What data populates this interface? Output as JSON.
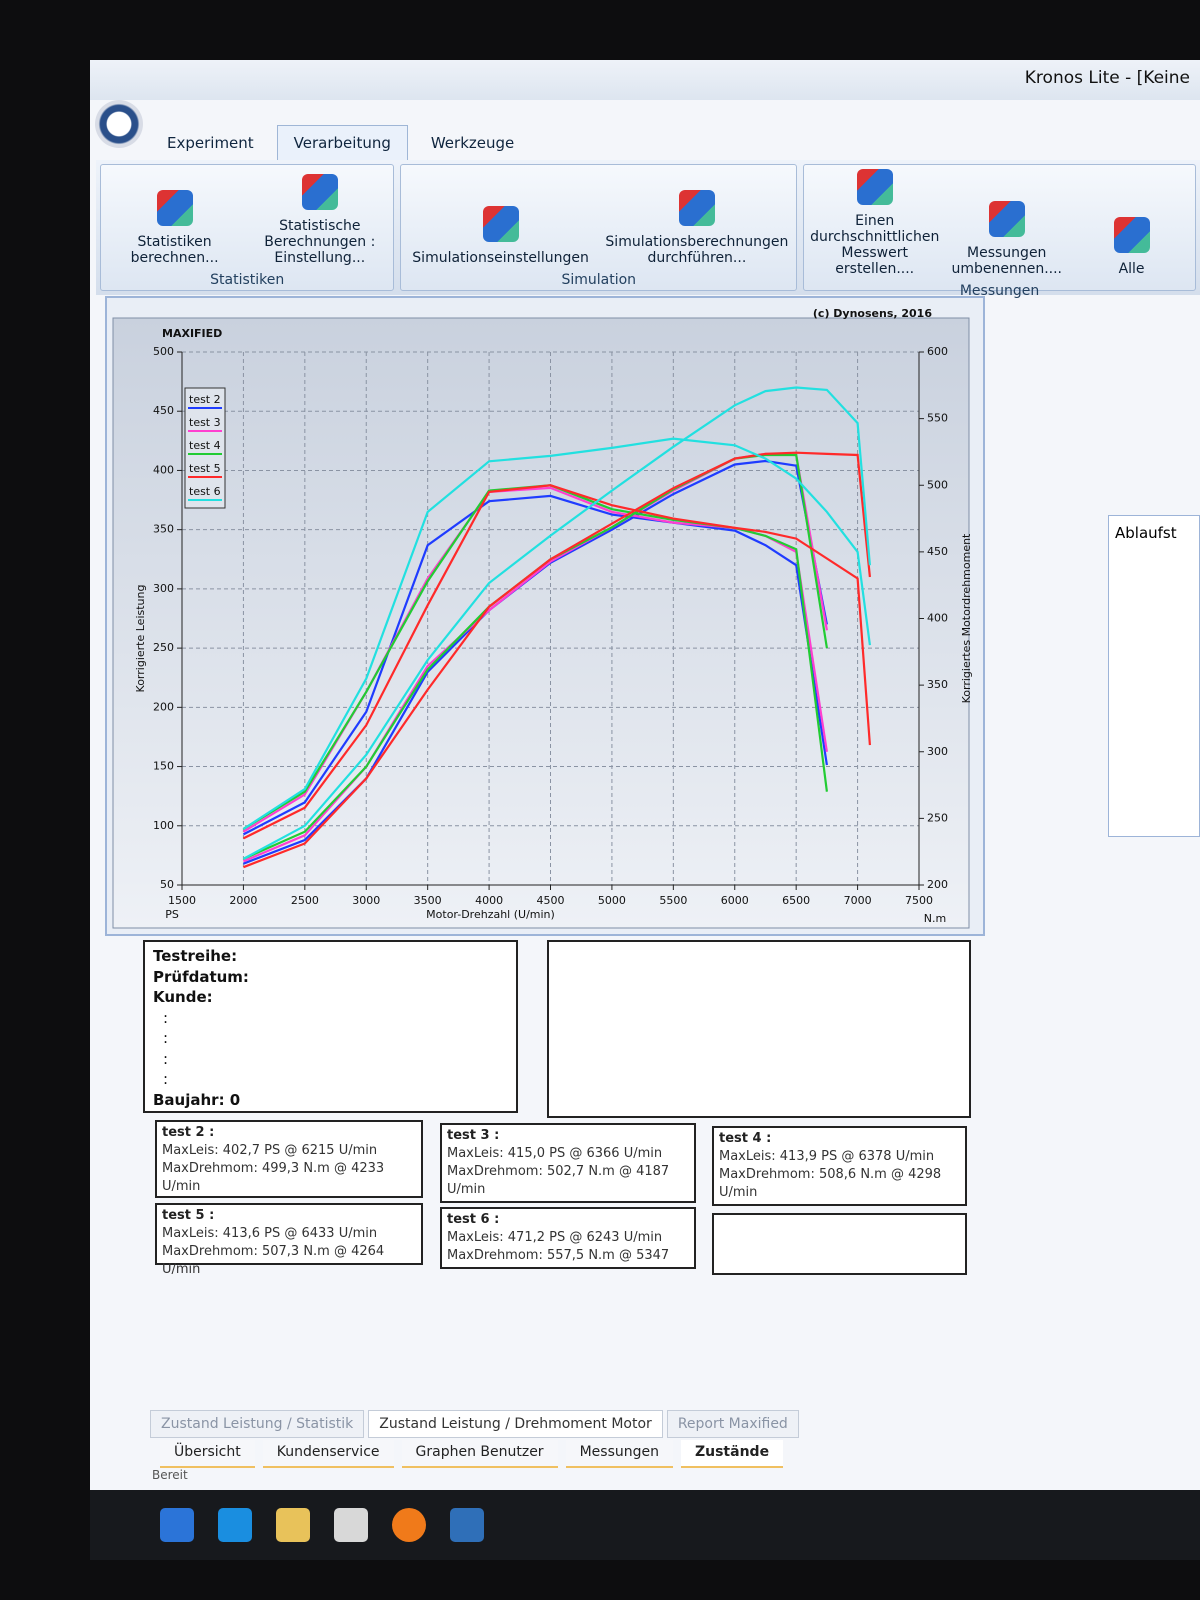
{
  "window": {
    "title": "Kronos Lite - [Keine"
  },
  "ribbon": {
    "tabs": [
      "Experiment",
      "Verarbeitung",
      "Werkzeuge"
    ],
    "groups": [
      {
        "label": "Statistiken",
        "buttons": [
          "Statistiken berechnen...",
          "Statistische Berechnungen : Einstellung..."
        ]
      },
      {
        "label": "Simulation",
        "buttons": [
          "Simulationseinstellungen",
          "Simulationsberechnungen durchführen..."
        ]
      },
      {
        "label": "Messungen",
        "buttons": [
          "Einen durchschnittlichen Messwert erstellen....",
          "Messungen umbenennen....",
          "Alle"
        ]
      }
    ]
  },
  "side_panel": {
    "title": "Ablaufst"
  },
  "chart_data": {
    "type": "line",
    "title": "MAXIFIED",
    "subtitle": "(c) Dynosens, 2016",
    "x_label": "Motor-Drehzahl (U/min)",
    "y_label": "Korrigierte Leistung",
    "y2_label": "Korrigiertes Motordrehmoment",
    "y_unit": "PS",
    "y2_unit": "N.m",
    "x": [
      2000,
      2500,
      3000,
      3500,
      4000,
      4500,
      5000,
      5500,
      6000,
      6250,
      6500,
      6750,
      7000,
      7100
    ],
    "xlim": [
      1500,
      7500
    ],
    "xticks": [
      1500,
      2000,
      2500,
      3000,
      3500,
      4000,
      4500,
      5000,
      5500,
      6000,
      6500,
      7000,
      7500
    ],
    "ylim": [
      50,
      500
    ],
    "yticks": [
      50,
      100,
      150,
      200,
      250,
      300,
      350,
      400,
      450,
      500
    ],
    "y2lim": [
      200,
      600
    ],
    "y2ticks": [
      200,
      250,
      300,
      350,
      400,
      450,
      500,
      550,
      600
    ],
    "grid": true,
    "legend": "upper left",
    "series": [
      {
        "name": "test 2",
        "color": "#1f3cff",
        "values": [
          68,
          88,
          140,
          230,
          282,
          322,
          350,
          380,
          405,
          408,
          404,
          270,
          null,
          null
        ],
        "y2_values": [
          238,
          262,
          330,
          455,
          488,
          492,
          478,
          472,
          466,
          455,
          440,
          290,
          null,
          null
        ]
      },
      {
        "name": "test 3",
        "color": "#ff3fd0",
        "values": [
          70,
          92,
          150,
          235,
          282,
          323,
          352,
          383,
          410,
          414,
          413,
          265,
          null,
          null
        ],
        "y2_values": [
          240,
          268,
          345,
          430,
          495,
          498,
          480,
          472,
          468,
          462,
          450,
          300,
          null,
          null
        ]
      },
      {
        "name": "test 4",
        "color": "#22cc33",
        "values": [
          72,
          95,
          150,
          232,
          285,
          325,
          352,
          384,
          410,
          413,
          413,
          250,
          null,
          null
        ],
        "y2_values": [
          242,
          270,
          345,
          428,
          496,
          500,
          482,
          474,
          468,
          462,
          452,
          270,
          null,
          null
        ]
      },
      {
        "name": "test 5",
        "color": "#ff2a2a",
        "values": [
          65,
          85,
          140,
          215,
          285,
          325,
          355,
          385,
          410,
          414,
          415,
          414,
          413,
          310
        ],
        "y2_values": [
          235,
          258,
          320,
          410,
          495,
          500,
          485,
          475,
          468,
          465,
          460,
          445,
          430,
          305
        ]
      },
      {
        "name": "test 6",
        "color": "#22e0e0",
        "values": [
          72,
          100,
          160,
          240,
          305,
          345,
          383,
          420,
          455,
          467,
          470,
          468,
          440,
          320
        ],
        "y2_values": [
          242,
          272,
          355,
          480,
          518,
          522,
          528,
          535,
          530,
          520,
          505,
          480,
          450,
          380
        ]
      }
    ]
  },
  "info": {
    "lines": [
      "Testreihe:",
      "Prüfdatum:",
      "Kunde:",
      ":",
      ":",
      ":",
      ":",
      "Baujahr: 0"
    ]
  },
  "results": [
    {
      "title": "test 2 :",
      "lines": [
        "MaxLeis: 402,7 PS @ 6215 U/min",
        "MaxDrehmom: 499,3 N.m @ 4233 U/min"
      ]
    },
    {
      "title": "test 3 :",
      "lines": [
        "MaxLeis: 415,0 PS @ 6366 U/min",
        "MaxDrehmom: 502,7 N.m @ 4187 U/min"
      ]
    },
    {
      "title": "test 4 :",
      "lines": [
        "MaxLeis: 413,9 PS @ 6378 U/min",
        "MaxDrehmom: 508,6 N.m @ 4298 U/min"
      ]
    },
    {
      "title": "test 5 :",
      "lines": [
        "MaxLeis: 413,6 PS @ 6433 U/min",
        "MaxDrehmom: 507,3 N.m @ 4264 U/min"
      ]
    },
    {
      "title": "test 6 :",
      "lines": [
        "MaxLeis: 471,2 PS @ 6243 U/min",
        "MaxDrehmom: 557,5 N.m @ 5347"
      ]
    }
  ],
  "sheet_tabs": [
    "Zustand Leistung / Statistik",
    "Zustand Leistung / Drehmoment Motor",
    "Report Maxified"
  ],
  "nav_tabs": [
    "Übersicht",
    "Kundenservice",
    "Graphen Benutzer",
    "Messungen",
    "Zustände"
  ],
  "status": "Bereit"
}
